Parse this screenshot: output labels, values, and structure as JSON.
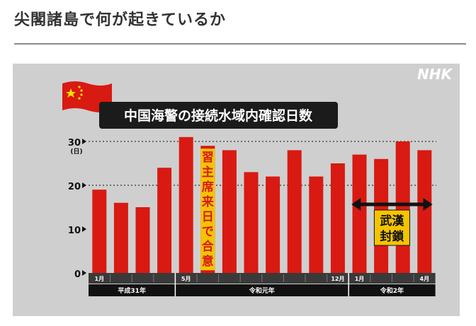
{
  "page": {
    "heading": "尖閣諸島で何が起きているか"
  },
  "broadcaster_logo": "NHK",
  "colors": {
    "bar": "#d81a12",
    "panel_bg": "#cfcfcf",
    "axis_band": "#3a3a3a",
    "era_band": "#111111",
    "annotation_bg": "#f5c400",
    "flag": "china-flag-icon"
  },
  "chart_data": {
    "type": "bar",
    "title": "中国海警の接続水域内確認日数",
    "ylabel": "(日)",
    "ylim": [
      0,
      30
    ],
    "yticks": [
      "0",
      "10",
      "20",
      "30"
    ],
    "grid": "dotted lines at 20 and 30",
    "values": [
      19,
      16,
      15,
      24,
      31,
      29,
      28,
      23,
      22,
      28,
      22,
      25,
      27,
      26,
      30,
      28
    ],
    "month_labels": [
      {
        "index": 0,
        "text": "1月"
      },
      {
        "index": 4,
        "text": "5月"
      },
      {
        "index": 11,
        "text": "12月"
      },
      {
        "index": 12,
        "text": "1月"
      },
      {
        "index": 15,
        "text": "4月"
      }
    ],
    "eras": [
      {
        "label": "平成31年",
        "start": 0,
        "end": 3
      },
      {
        "label": "令和元年",
        "start": 4,
        "end": 11
      },
      {
        "label": "令和2年",
        "start": 12,
        "end": 15
      }
    ],
    "annotations": [
      {
        "text": "習主席来日で合意",
        "bar_index": 5
      },
      {
        "text_line1": "武漢",
        "text_line2": "封鎖",
        "start": 12,
        "end": 15
      }
    ]
  }
}
